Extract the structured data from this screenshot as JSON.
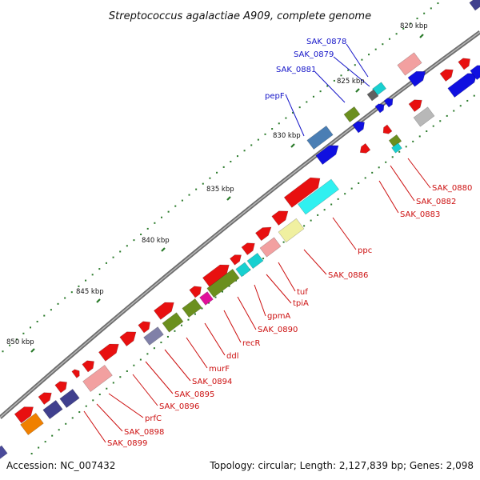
{
  "title": "Streptococcus agalactiae A909, complete genome",
  "footer": {
    "accession": "Accession: NC_007432",
    "summary": "Topology: circular; Length: 2,127,839 bp; Genes: 2,098"
  },
  "colors": {
    "backbone": "#8a8a8a",
    "tick_major": "#2a7a2a",
    "tick_minor": "#2a7a2a",
    "label_blue": "#1414c8",
    "label_red": "#cc1010"
  },
  "ticks": [
    {
      "label": "820 kbp"
    },
    {
      "label": "825 kbp"
    },
    {
      "label": "830 kbp"
    },
    {
      "label": "835 kbp"
    },
    {
      "label": "840 kbp"
    },
    {
      "label": "845 kbp"
    },
    {
      "label": "850 kbp"
    }
  ],
  "gene_labels": [
    {
      "name": "SAK_0878",
      "color": "blue"
    },
    {
      "name": "SAK_0879",
      "color": "blue"
    },
    {
      "name": "SAK_0881",
      "color": "blue"
    },
    {
      "name": "pepF",
      "color": "blue"
    },
    {
      "name": "SAK_0880",
      "color": "red"
    },
    {
      "name": "SAK_0882",
      "color": "red"
    },
    {
      "name": "SAK_0883",
      "color": "red"
    },
    {
      "name": "ppc",
      "color": "red"
    },
    {
      "name": "SAK_0886",
      "color": "red"
    },
    {
      "name": "tuf",
      "color": "red"
    },
    {
      "name": "tpiA",
      "color": "red"
    },
    {
      "name": "gpmA",
      "color": "red"
    },
    {
      "name": "SAK_0890",
      "color": "red"
    },
    {
      "name": "recR",
      "color": "red"
    },
    {
      "name": "ddl",
      "color": "red"
    },
    {
      "name": "murF",
      "color": "red"
    },
    {
      "name": "SAK_0894",
      "color": "red"
    },
    {
      "name": "SAK_0895",
      "color": "red"
    },
    {
      "name": "SAK_0896",
      "color": "red"
    },
    {
      "name": "prfC",
      "color": "red"
    },
    {
      "name": "SAK_0898",
      "color": "red"
    },
    {
      "name": "SAK_0899",
      "color": "red"
    }
  ]
}
